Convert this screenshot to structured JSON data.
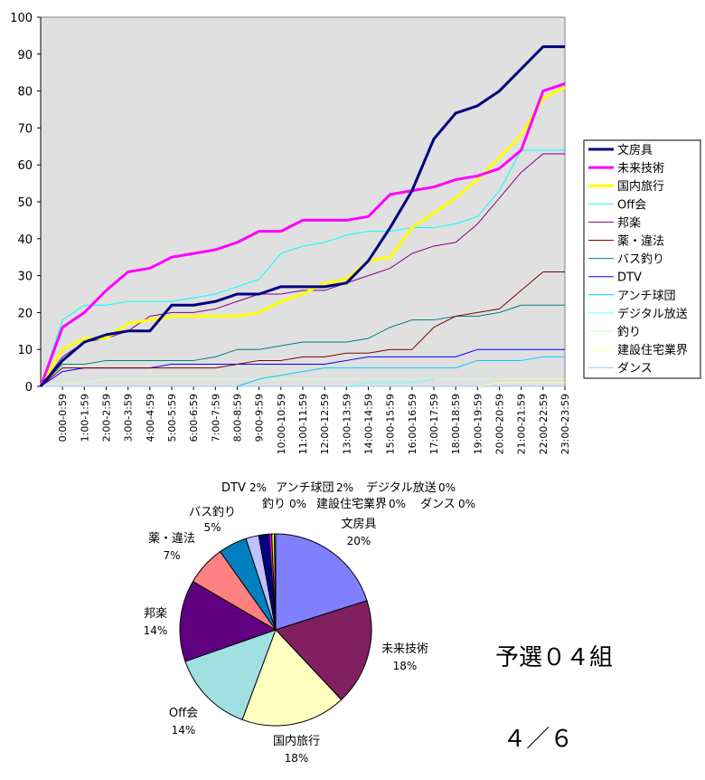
{
  "chart_data": [
    {
      "type": "line",
      "title": "",
      "xlabel": "",
      "ylabel": "",
      "ylim": [
        0,
        100
      ],
      "yticks": [
        0,
        10,
        20,
        30,
        40,
        50,
        60,
        70,
        80,
        90,
        100
      ],
      "grid": false,
      "legend_position": "right",
      "categories": [
        "0:00-0:59",
        "1:00-1:59",
        "2:00-2:59",
        "3:00-3:59",
        "4:00-4:59",
        "5:00-5:59",
        "6:00-6:59",
        "7:00-7:59",
        "8:00-8:59",
        "9:00-9:59",
        "10:00-10:59",
        "11:00-11:59",
        "12:00-12:59",
        "13:00-13:59",
        "14:00-14:59",
        "15:00-15:59",
        "16:00-16:59",
        "17:00-17:59",
        "18:00-18:59",
        "19:00-19:59",
        "20:00-20:59",
        "21:00-21:59",
        "22:00-22:59",
        "23:00-23:59"
      ],
      "series": [
        {
          "name": "文房具",
          "color": "#000080",
          "bold": true,
          "values": [
            7,
            12,
            14,
            15,
            15,
            22,
            22,
            23,
            25,
            25,
            27,
            27,
            27,
            28,
            34,
            43,
            53,
            67,
            74,
            76,
            80,
            86,
            92,
            92
          ]
        },
        {
          "name": "未来技術",
          "color": "#FF00FF",
          "bold": true,
          "values": [
            16,
            20,
            26,
            31,
            32,
            35,
            36,
            37,
            39,
            42,
            42,
            45,
            45,
            45,
            46,
            52,
            53,
            54,
            56,
            57,
            59,
            64,
            80,
            82
          ]
        },
        {
          "name": "国内旅行",
          "color": "#FFFF00",
          "bold": true,
          "values": [
            10,
            13,
            13,
            17,
            18,
            19,
            19,
            19,
            19,
            20,
            23,
            25,
            28,
            29,
            34,
            35,
            43,
            47,
            51,
            56,
            62,
            68,
            78,
            81
          ]
        },
        {
          "name": "Off会",
          "color": "#00FFFF",
          "bold": false,
          "values": [
            18,
            22,
            22,
            23,
            23,
            23,
            24,
            25,
            27,
            29,
            36,
            38,
            39,
            41,
            42,
            42,
            43,
            43,
            44,
            46,
            53,
            64,
            64,
            64
          ]
        },
        {
          "name": "邦楽",
          "color": "#800080",
          "bold": false,
          "values": [
            8,
            12,
            13,
            15,
            19,
            20,
            20,
            21,
            23,
            25,
            25,
            26,
            26,
            28,
            30,
            32,
            36,
            38,
            39,
            44,
            51,
            58,
            63,
            63
          ]
        },
        {
          "name": "薬・違法",
          "color": "#800000",
          "bold": false,
          "values": [
            5,
            5,
            5,
            5,
            5,
            5,
            5,
            5,
            6,
            7,
            7,
            8,
            8,
            9,
            9,
            10,
            10,
            16,
            19,
            20,
            21,
            26,
            31,
            31
          ]
        },
        {
          "name": "バス釣り",
          "color": "#008080",
          "bold": false,
          "values": [
            6,
            6,
            7,
            7,
            7,
            7,
            7,
            8,
            10,
            10,
            11,
            12,
            12,
            12,
            13,
            16,
            18,
            18,
            19,
            19,
            20,
            22,
            22,
            22
          ]
        },
        {
          "name": "DTV",
          "color": "#0000FF",
          "bold": false,
          "values": [
            4,
            5,
            5,
            5,
            5,
            6,
            6,
            6,
            6,
            6,
            6,
            6,
            6,
            7,
            8,
            8,
            8,
            8,
            8,
            10,
            10,
            10,
            10,
            10
          ]
        },
        {
          "name": "アンチ球団",
          "color": "#00CCFF",
          "bold": false,
          "values": [
            null,
            null,
            null,
            null,
            null,
            null,
            null,
            null,
            0,
            2,
            3,
            4,
            5,
            5,
            5,
            5,
            5,
            5,
            5,
            7,
            7,
            7,
            8,
            8
          ]
        },
        {
          "name": "デジタル放送",
          "color": "#66FFFF",
          "bold": false,
          "values": [
            null,
            null,
            null,
            null,
            null,
            null,
            null,
            null,
            null,
            null,
            null,
            null,
            null,
            0,
            1,
            1,
            1,
            2,
            null,
            null,
            null,
            null,
            null,
            null
          ]
        },
        {
          "name": "釣り",
          "color": "#CCFFCC",
          "bold": false,
          "values": [
            1,
            1,
            2,
            2,
            2,
            2,
            2,
            2,
            2,
            2,
            2,
            2,
            2,
            2,
            2,
            2,
            2,
            2,
            2,
            2,
            2,
            2,
            2,
            2
          ]
        },
        {
          "name": "建設住宅業界",
          "color": "#FFFF99",
          "bold": false,
          "values": [
            null,
            null,
            null,
            null,
            null,
            null,
            null,
            null,
            null,
            null,
            null,
            null,
            null,
            null,
            null,
            null,
            null,
            null,
            null,
            0,
            1,
            1,
            1,
            1
          ]
        },
        {
          "name": "ダンス",
          "color": "#99CCFF",
          "bold": false,
          "values": [
            0,
            0,
            0,
            0,
            0,
            0,
            0,
            0,
            0,
            0,
            0,
            0,
            0,
            0,
            0,
            0,
            0,
            0,
            0,
            0,
            0,
            0,
            0,
            0
          ]
        }
      ]
    },
    {
      "type": "pie",
      "title": "予選０４組\n４／６",
      "slices": [
        {
          "name": "文房具",
          "value": 92,
          "pct": "20%",
          "color": "#8080FF"
        },
        {
          "name": "未来技術",
          "value": 82,
          "pct": "18%",
          "color": "#802060"
        },
        {
          "name": "国内旅行",
          "value": 81,
          "pct": "18%",
          "color": "#FFFFC0"
        },
        {
          "name": "Off会",
          "value": 64,
          "pct": "14%",
          "color": "#A0E0E0"
        },
        {
          "name": "邦楽",
          "value": 63,
          "pct": "14%",
          "color": "#600080"
        },
        {
          "name": "薬・違法",
          "value": 31,
          "pct": "7%",
          "color": "#FF8080"
        },
        {
          "name": "バス釣り",
          "value": 22,
          "pct": "5%",
          "color": "#0080C0"
        },
        {
          "name": "DTV",
          "value": 10,
          "pct": "2%",
          "color": "#C0C0FF"
        },
        {
          "name": "アンチ球団",
          "value": 8,
          "pct": "2%",
          "color": "#000080"
        },
        {
          "name": "デジタル放送",
          "value": 2,
          "pct": "0%",
          "color": "#FF00FF"
        },
        {
          "name": "釣り",
          "value": 2,
          "pct": "0%",
          "color": "#FFFF00"
        },
        {
          "name": "建設住宅業界",
          "value": 1,
          "pct": "0%",
          "color": "#00FFFF"
        },
        {
          "name": "ダンス",
          "value": 0,
          "pct": "0%",
          "color": "#800080"
        }
      ]
    }
  ],
  "annotation": {
    "line1": "予選０４組",
    "line2": " ４／６"
  }
}
